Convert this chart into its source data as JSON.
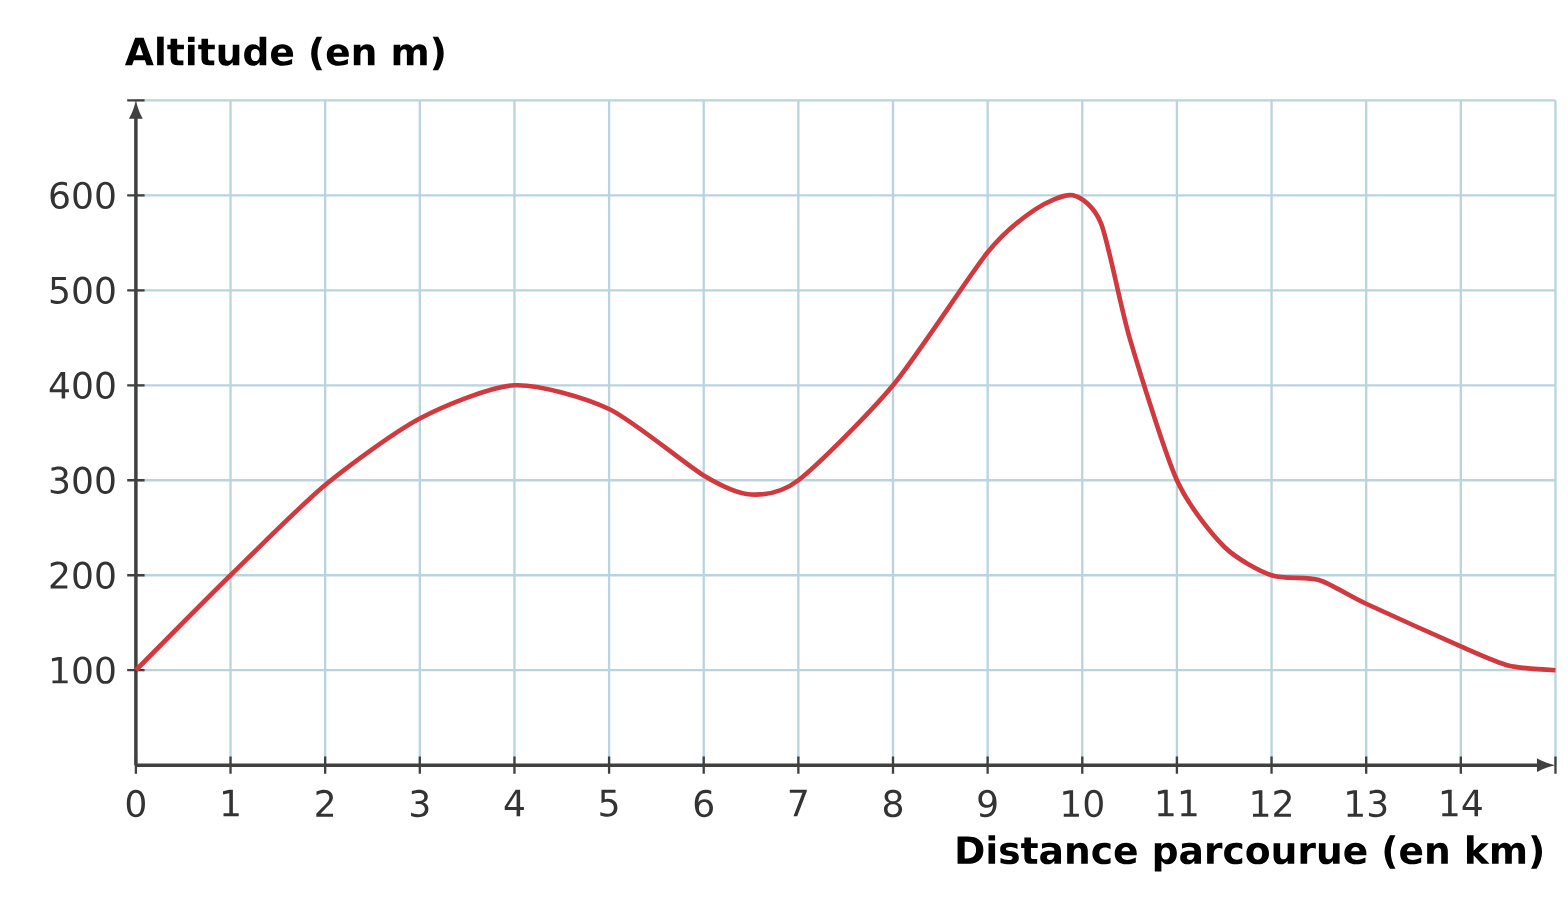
{
  "chart_data": {
    "type": "line",
    "xlabel": "Distance parcourue (en km)",
    "ylabel": "Altitude (en m)",
    "x": [
      0,
      1,
      2,
      3,
      4,
      5,
      6,
      6.5,
      7,
      8,
      9,
      9.5,
      9.9,
      10.2,
      10.5,
      11,
      11.5,
      12,
      12.5,
      13,
      14,
      14.5,
      15
    ],
    "series": [
      {
        "color": "#d0393e",
        "values": [
          100,
          200,
          295,
          365,
          400,
          375,
          305,
          285,
          300,
          400,
          540,
          585,
          600,
          570,
          450,
          300,
          230,
          200,
          195,
          170,
          125,
          105,
          100
        ]
      }
    ],
    "xlim": [
      0,
      15
    ],
    "ylim": [
      0,
      700
    ],
    "xticks": [
      0,
      1,
      2,
      3,
      4,
      5,
      6,
      7,
      8,
      9,
      10,
      11,
      12,
      13,
      14,
      {
        "value": 15,
        "label": null
      }
    ],
    "yticks": [
      100,
      200,
      300,
      400,
      500,
      600,
      {
        "value": 700,
        "label": null
      }
    ],
    "grid": true,
    "marker": "none",
    "line_style": "solid"
  }
}
